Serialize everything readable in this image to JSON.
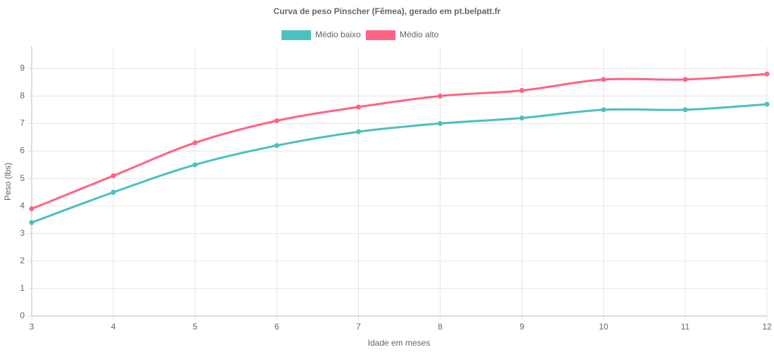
{
  "chart_data": {
    "type": "line",
    "title": "Curva de peso Pinscher (Fêmea), gerado em pt.belpatt.fr",
    "x_label": "Idade em meses",
    "y_label": "Peso (lbs)",
    "x": [
      3,
      4,
      5,
      6,
      7,
      8,
      9,
      10,
      11,
      12
    ],
    "series": [
      {
        "name": "Médio baixo",
        "color": "#4bc0c0",
        "values": [
          3.4,
          4.5,
          5.5,
          6.2,
          6.7,
          7.0,
          7.2,
          7.5,
          7.5,
          7.7
        ]
      },
      {
        "name": "Médio alto",
        "color": "#ff6384",
        "values": [
          3.9,
          5.1,
          6.3,
          7.1,
          7.6,
          8.0,
          8.2,
          8.6,
          8.6,
          8.8
        ]
      }
    ],
    "xlim": [
      3,
      12
    ],
    "xticks": [
      3,
      4,
      5,
      6,
      7,
      8,
      9,
      10,
      11,
      12
    ],
    "ylim": [
      0,
      9.8
    ],
    "yticks": [
      0,
      1,
      2,
      3,
      4,
      5,
      6,
      7,
      8,
      9
    ],
    "grid": true,
    "legend": "top"
  }
}
